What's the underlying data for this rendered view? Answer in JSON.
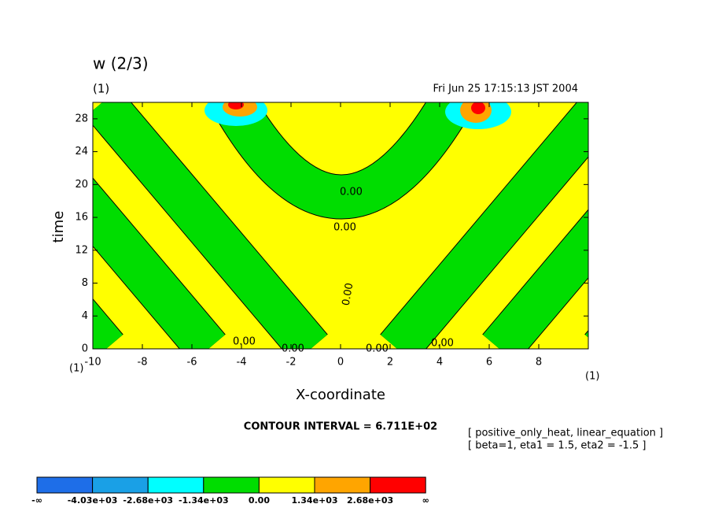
{
  "chart_data": {
    "type": "contour",
    "title": "w (2/3)",
    "subtitle": "(1)",
    "timestamp": "Fri Jun 25 17:15:13 JST 2004",
    "xlabel": "X-coordinate",
    "ylabel": "time",
    "corner_label_left": "(1)",
    "corner_label_right": "(1)",
    "xlim": [
      -10,
      10
    ],
    "xticks": [
      -10,
      -8,
      -6,
      -4,
      -2,
      0,
      2,
      4,
      6,
      8
    ],
    "ylim": [
      0,
      30
    ],
    "yticks": [
      0,
      4,
      8,
      12,
      16,
      20,
      24,
      28
    ],
    "contour_labels": [
      "0.00",
      "0.00",
      "0.00",
      "0.00",
      "0.00",
      "0.00",
      "0.00"
    ],
    "contour_interval": "CONTOUR INTERVAL = 6.711E+02",
    "notes": [
      "[ positive_only_heat, linear_equation ]",
      "[ beta=1, eta1 = 1.5, eta2 = -1.5 ]"
    ],
    "colorbar": {
      "colors": [
        "#1e6ee8",
        "#1aa0e6",
        "#00ffff",
        "#00dd00",
        "#ffff00",
        "#ffa500",
        "#ff0000"
      ],
      "ends": [
        "-∞",
        "∞"
      ],
      "levels": [
        {
          "value": -4030,
          "label": "-4.03e+03"
        },
        {
          "value": -2680,
          "label": "-2.68e+03"
        },
        {
          "value": -1340,
          "label": "-1.34e+03"
        },
        {
          "value": 0,
          "label": "0.00"
        },
        {
          "value": 1340,
          "label": "1.34e+03"
        },
        {
          "value": 2680,
          "label": "2.68e+03"
        }
      ]
    }
  }
}
